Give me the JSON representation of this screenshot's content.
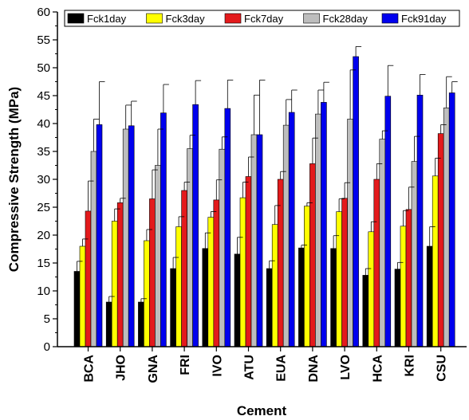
{
  "chart_data": {
    "type": "bar",
    "title": "",
    "xlabel": "Cement",
    "ylabel": "Compressive Strength (MPa)",
    "ylim": [
      0,
      60
    ],
    "y_ticks": [
      0,
      5,
      10,
      15,
      20,
      25,
      30,
      35,
      40,
      45,
      50,
      55,
      60
    ],
    "grid": false,
    "legend_position": "top",
    "error_bars": true,
    "categories": [
      "BCA",
      "JHO",
      "GNA",
      "FRI",
      "IVO",
      "ATU",
      "EUA",
      "DNA",
      "LVO",
      "HCA",
      "KRI",
      "CSU"
    ],
    "series": [
      {
        "name": "Fck1day",
        "color": "#000000",
        "values": [
          13.5,
          8.0,
          8.0,
          14.0,
          17.6,
          16.6,
          14.0,
          17.7,
          17.6,
          12.8,
          13.9,
          18.0
        ],
        "errors": [
          1.8,
          1.0,
          0.6,
          2.0,
          2.8,
          3.0,
          1.4,
          0.5,
          2.3,
          1.2,
          1.2,
          3.5
        ]
      },
      {
        "name": "Fck3day",
        "color": "#ffff00",
        "values": [
          18.0,
          22.5,
          19.0,
          21.5,
          23.2,
          26.7,
          21.9,
          25.2,
          24.2,
          20.6,
          21.6,
          30.6
        ],
        "errors": [
          1.3,
          2.2,
          2.0,
          1.8,
          1.0,
          2.8,
          3.4,
          0.6,
          2.3,
          1.8,
          2.8,
          3.2
        ]
      },
      {
        "name": "Fck7day",
        "color": "#e31a1c",
        "values": [
          24.3,
          25.8,
          26.5,
          28.0,
          26.3,
          30.5,
          30.0,
          32.8,
          26.6,
          30.0,
          24.6,
          38.2
        ],
        "errors": [
          5.4,
          0.8,
          5.2,
          1.5,
          3.6,
          3.5,
          1.4,
          4.6,
          2.8,
          2.8,
          4.0,
          1.6
        ]
      },
      {
        "name": "Fck28day",
        "color": "#bdbdbd",
        "values": [
          35.0,
          39.0,
          32.5,
          35.5,
          35.4,
          38.0,
          39.7,
          41.7,
          40.8,
          37.2,
          33.2,
          42.8
        ],
        "errors": [
          5.8,
          4.3,
          6.5,
          2.4,
          2.2,
          7.1,
          4.6,
          4.3,
          8.8,
          1.5,
          4.5,
          5.6
        ]
      },
      {
        "name": "Fck91day",
        "color": "#0000ee",
        "values": [
          39.8,
          39.6,
          41.9,
          43.4,
          42.7,
          38.0,
          42.0,
          43.8,
          52.0,
          44.9,
          45.1,
          45.5
        ],
        "errors": [
          7.7,
          4.4,
          5.1,
          4.3,
          5.1,
          9.8,
          4.0,
          3.6,
          1.8,
          5.5,
          3.7,
          2.0
        ]
      }
    ]
  }
}
